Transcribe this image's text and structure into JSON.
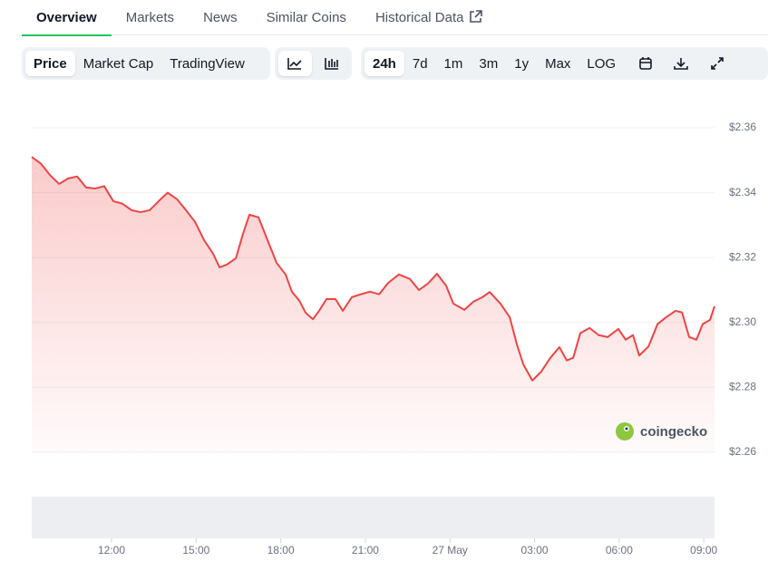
{
  "tabs": [
    "Overview",
    "Markets",
    "News",
    "Similar Coins",
    "Historical Data"
  ],
  "chart_tabs": [
    "Price",
    "Market Cap",
    "TradingView"
  ],
  "ranges": [
    "24h",
    "7d",
    "1m",
    "3m",
    "1y",
    "Max",
    "LOG"
  ],
  "watermark": "coingecko",
  "chart_data": {
    "type": "area",
    "color": "#ef4444",
    "grid": true,
    "x": [
      9.17,
      9.49,
      9.81,
      10.14,
      10.46,
      10.78,
      11.1,
      11.42,
      11.74,
      12.06,
      12.39,
      12.71,
      13.03,
      13.35,
      13.67,
      13.99,
      14.32,
      14.64,
      14.96,
      15.28,
      15.6,
      15.83,
      16.08,
      16.41,
      16.66,
      16.89,
      17.21,
      17.53,
      17.85,
      18.17,
      18.4,
      18.66,
      18.88,
      19.14,
      19.36,
      19.62,
      19.94,
      20.2,
      20.52,
      20.84,
      21.16,
      21.49,
      21.81,
      22.19,
      22.58,
      22.9,
      23.22,
      23.54,
      23.86,
      24.12,
      24.51,
      24.83,
      25.15,
      25.41,
      25.79,
      26.12,
      26.37,
      26.6,
      26.92,
      27.24,
      27.56,
      27.88,
      28.14,
      28.37,
      28.62,
      28.95,
      29.27,
      29.59,
      29.97,
      30.23,
      30.49,
      30.71,
      31.04,
      31.36,
      31.68,
      32.0,
      32.23,
      32.48,
      32.74,
      32.96,
      33.22,
      33.38
    ],
    "values": [
      2.351,
      2.349,
      2.3455,
      2.3427,
      2.3444,
      2.345,
      2.3416,
      2.3413,
      2.342,
      2.3374,
      2.3366,
      2.3346,
      2.334,
      2.3346,
      2.3374,
      2.34,
      2.338,
      2.3346,
      2.331,
      2.3254,
      2.3212,
      2.317,
      2.3178,
      2.3198,
      2.3273,
      2.3332,
      2.3324,
      2.3254,
      2.3184,
      2.3148,
      2.3094,
      2.3067,
      2.303,
      2.301,
      2.3036,
      2.3072,
      2.3072,
      2.3036,
      2.3078,
      2.3087,
      2.3095,
      2.3087,
      2.3122,
      2.3148,
      2.3134,
      2.31,
      2.312,
      2.315,
      2.3114,
      2.3058,
      2.3039,
      2.3064,
      2.3078,
      2.3094,
      2.3058,
      2.3016,
      2.2933,
      2.2871,
      2.2821,
      2.2849,
      2.2891,
      2.2924,
      2.2883,
      2.2891,
      2.2967,
      2.2983,
      2.2961,
      2.2955,
      2.298,
      2.2947,
      2.2961,
      2.2898,
      2.2926,
      2.2995,
      2.3017,
      2.3036,
      2.3031,
      2.2955,
      2.2947,
      2.2995,
      2.3008,
      2.305
    ],
    "xlim": [
      9.17,
      33.38
    ],
    "xticks": [
      {
        "value": 12,
        "label": "12:00"
      },
      {
        "value": 15,
        "label": "15:00"
      },
      {
        "value": 18,
        "label": "18:00"
      },
      {
        "value": 21,
        "label": "21:00"
      },
      {
        "value": 24,
        "label": "27 May"
      },
      {
        "value": 27,
        "label": "03:00"
      },
      {
        "value": 30,
        "label": "06:00"
      },
      {
        "value": 33,
        "label": "09:00"
      }
    ],
    "ylim": [
      2.26,
      2.36
    ],
    "yticks": [
      {
        "value": 2.36,
        "label": "$2.36"
      },
      {
        "value": 2.34,
        "label": "$2.34"
      },
      {
        "value": 2.32,
        "label": "$2.32"
      },
      {
        "value": 2.3,
        "label": "$2.30"
      },
      {
        "value": 2.28,
        "label": "$2.28"
      },
      {
        "value": 2.26,
        "label": "$2.26"
      }
    ]
  }
}
